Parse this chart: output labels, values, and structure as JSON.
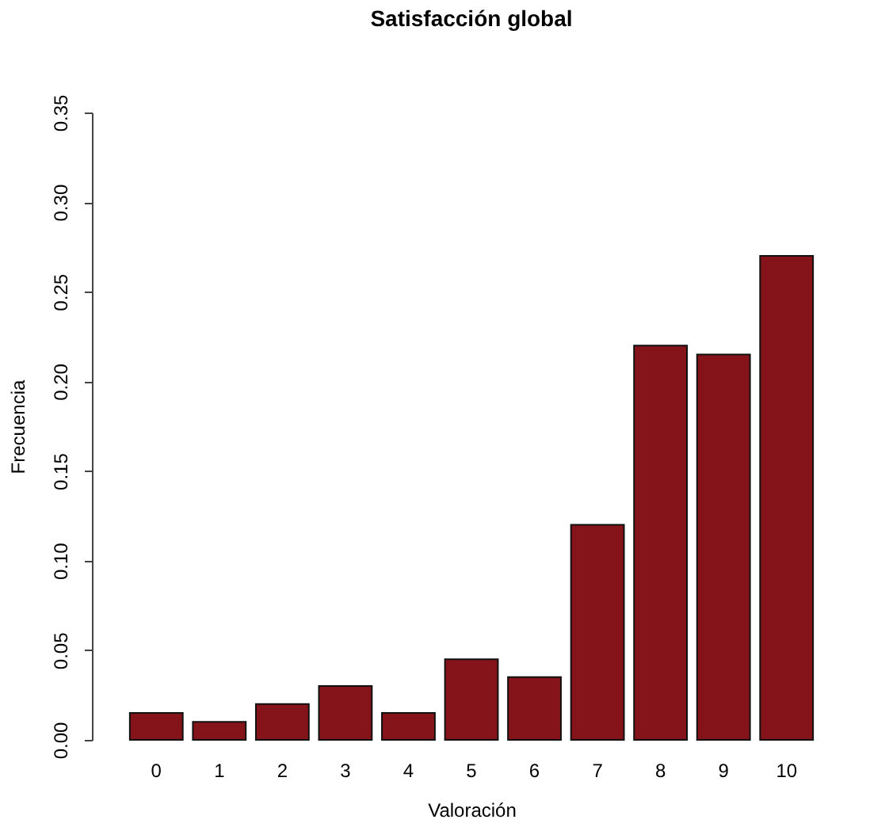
{
  "chart_data": {
    "type": "bar",
    "title": "Satisfacción global",
    "xlabel": "Valoración",
    "ylabel": "Frecuencia",
    "categories": [
      "0",
      "1",
      "2",
      "3",
      "4",
      "5",
      "6",
      "7",
      "8",
      "9",
      "10"
    ],
    "values": [
      0.015,
      0.01,
      0.02,
      0.03,
      0.015,
      0.045,
      0.035,
      0.12,
      0.22,
      0.215,
      0.27
    ],
    "color": "#85141a",
    "ylim": [
      0,
      0.35
    ],
    "yticks": [
      {
        "value": 0,
        "label": "0.00"
      },
      {
        "value": 0.05,
        "label": "0.05"
      },
      {
        "value": 0.1,
        "label": "0.10"
      },
      {
        "value": 0.15,
        "label": "0.15"
      },
      {
        "value": 0.2,
        "label": "0.20"
      },
      {
        "value": 0.25,
        "label": "0.25"
      },
      {
        "value": 0.3,
        "label": "0.30"
      },
      {
        "value": 0.35,
        "label": "0.35"
      }
    ],
    "grid": false
  }
}
